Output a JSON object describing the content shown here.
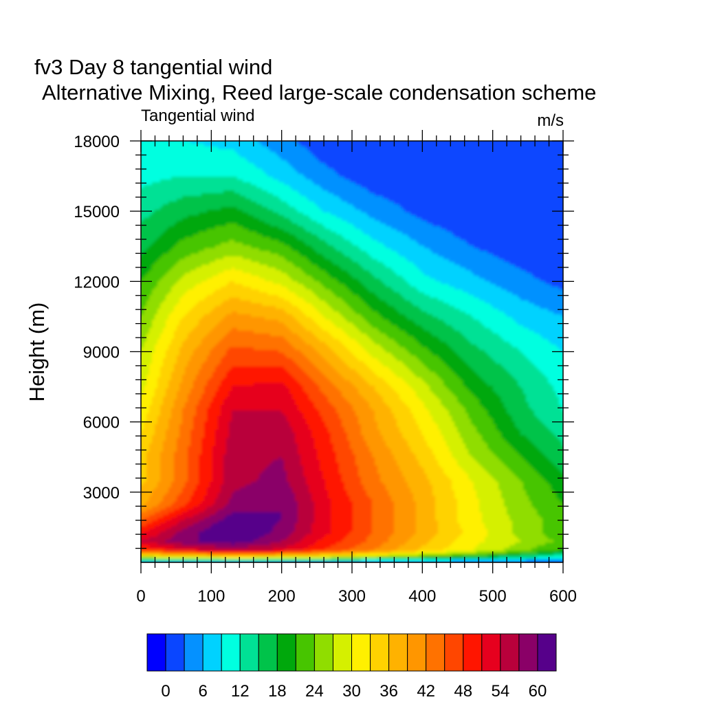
{
  "chart_data": {
    "type": "filled-contour",
    "title": "fv3 Day 8 tangential wind",
    "subtitle": "Alternative Mixing, Reed large-scale condensation scheme",
    "left_string": "Tangential wind",
    "right_string": "m/s",
    "xlabel": "",
    "ylabel": "Height (m)",
    "xlim": [
      0,
      600
    ],
    "ylim": [
      0,
      18000
    ],
    "x_ticks": [
      0,
      100,
      200,
      300,
      400,
      500,
      600
    ],
    "y_ticks": [
      3000,
      6000,
      9000,
      12000,
      15000,
      18000
    ],
    "grid": false,
    "colorbar": {
      "levels": [
        0,
        3,
        6,
        9,
        12,
        15,
        18,
        21,
        24,
        27,
        30,
        33,
        36,
        39,
        42,
        45,
        48,
        51,
        54,
        57,
        60
      ],
      "labels": [
        "0",
        "6",
        "12",
        "18",
        "24",
        "30",
        "36",
        "42",
        "48",
        "54",
        "60"
      ],
      "colors": [
        "#0000ff",
        "#0a46ff",
        "#0591ff",
        "#00d2ff",
        "#00ffe0",
        "#00e195",
        "#00c34a",
        "#00a80c",
        "#47c500",
        "#90dd00",
        "#d5f000",
        "#fff000",
        "#ffd200",
        "#ffb200",
        "#ff9600",
        "#ff7200",
        "#ff4600",
        "#ff1500",
        "#e6001e",
        "#b9003b",
        "#8a0067",
        "#56008a"
      ],
      "placement": "bottom"
    },
    "x": [
      0,
      60,
      130,
      200,
      260,
      330,
      400,
      470,
      540,
      600
    ],
    "y": [
      0,
      200,
      500,
      900,
      1300,
      1800,
      2500,
      3500,
      4500,
      5500,
      6500,
      7500,
      9000,
      10500,
      12000,
      13500,
      15000,
      16500,
      18000
    ],
    "values": [
      [
        4,
        3,
        3,
        3,
        2,
        2,
        2,
        1,
        1,
        0
      ],
      [
        26,
        28,
        30,
        29,
        27,
        24,
        21,
        17,
        13,
        10
      ],
      [
        47,
        52,
        55,
        53,
        48,
        42,
        35,
        30,
        25,
        20
      ],
      [
        54,
        59,
        62,
        57,
        50,
        44,
        37,
        31,
        27,
        23
      ],
      [
        50,
        58,
        64,
        59,
        52,
        45,
        38,
        32,
        26,
        22
      ],
      [
        45,
        54,
        62,
        60,
        52,
        45,
        38,
        31,
        26,
        22
      ],
      [
        38,
        47,
        58,
        60,
        52,
        45,
        38,
        31,
        25,
        21
      ],
      [
        35,
        44,
        56,
        58,
        51,
        43,
        37,
        30,
        24,
        19
      ],
      [
        35,
        44,
        56,
        57,
        50,
        42,
        35,
        27,
        21,
        16
      ],
      [
        33,
        43,
        55,
        56,
        49,
        40,
        33,
        25,
        18,
        14
      ],
      [
        31,
        42,
        54,
        54,
        47,
        39,
        31,
        23,
        16,
        12
      ],
      [
        29,
        40,
        51,
        52,
        44,
        36,
        28,
        20,
        15,
        11
      ],
      [
        27,
        37,
        46,
        45,
        38,
        29,
        22,
        16,
        12,
        9
      ],
      [
        24,
        33,
        40,
        38,
        30,
        22,
        16,
        12,
        8,
        6
      ],
      [
        21,
        28,
        33,
        29,
        23,
        16,
        10,
        7,
        4,
        2
      ],
      [
        17,
        22,
        25,
        22,
        16,
        10,
        6,
        3,
        1,
        0
      ],
      [
        14,
        17,
        19,
        14,
        9,
        5,
        2,
        0,
        0,
        0
      ],
      [
        11,
        12,
        12,
        8,
        4,
        1,
        0,
        0,
        0,
        0
      ],
      [
        9,
        9,
        8,
        4,
        1,
        0,
        0,
        0,
        0,
        0
      ]
    ]
  }
}
